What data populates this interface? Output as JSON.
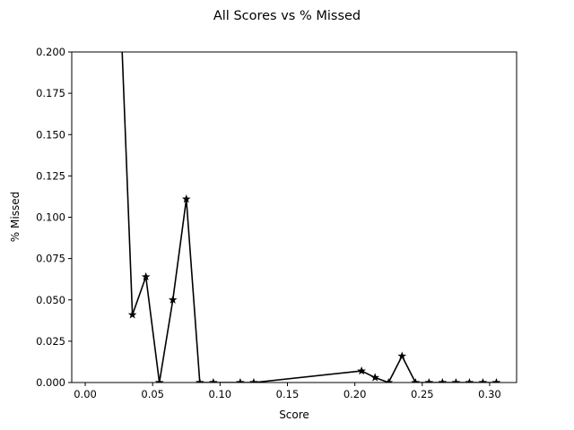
{
  "chart_data": {
    "type": "line",
    "title": "All Scores vs % Missed",
    "xlabel": "Score",
    "ylabel": "% Missed",
    "xlim": [
      -0.01,
      0.32
    ],
    "ylim": [
      0.0,
      0.2
    ],
    "xticks": [
      0.0,
      0.05,
      0.1,
      0.15,
      0.2,
      0.25,
      0.3
    ],
    "xtick_labels": [
      "0.00",
      "0.05",
      "0.10",
      "0.15",
      "0.20",
      "0.25",
      "0.30"
    ],
    "yticks": [
      0.0,
      0.025,
      0.05,
      0.075,
      0.1,
      0.125,
      0.15,
      0.175,
      0.2
    ],
    "ytick_labels": [
      "0.000",
      "0.025",
      "0.050",
      "0.075",
      "0.100",
      "0.125",
      "0.150",
      "0.175",
      "0.200"
    ],
    "grid": false,
    "marker": "star",
    "line_color": "#000000",
    "series": [
      {
        "x": [
          0.025,
          0.035,
          0.045,
          0.055,
          0.065,
          0.075,
          0.085,
          0.095,
          0.115,
          0.125,
          0.205,
          0.215,
          0.225,
          0.235,
          0.245,
          0.255,
          0.265,
          0.275,
          0.285,
          0.295,
          0.305
        ],
        "y": [
          0.25,
          0.041,
          0.064,
          0.0,
          0.05,
          0.111,
          0.0,
          0.0,
          0.0,
          0.0,
          0.007,
          0.003,
          0.0,
          0.016,
          0.0,
          0.0,
          0.0,
          0.0,
          0.0,
          0.0,
          0.0
        ],
        "markers": [
          false,
          true,
          true,
          true,
          true,
          true,
          true,
          true,
          true,
          true,
          true,
          true,
          true,
          true,
          true,
          true,
          true,
          true,
          true,
          true,
          true
        ]
      }
    ]
  }
}
